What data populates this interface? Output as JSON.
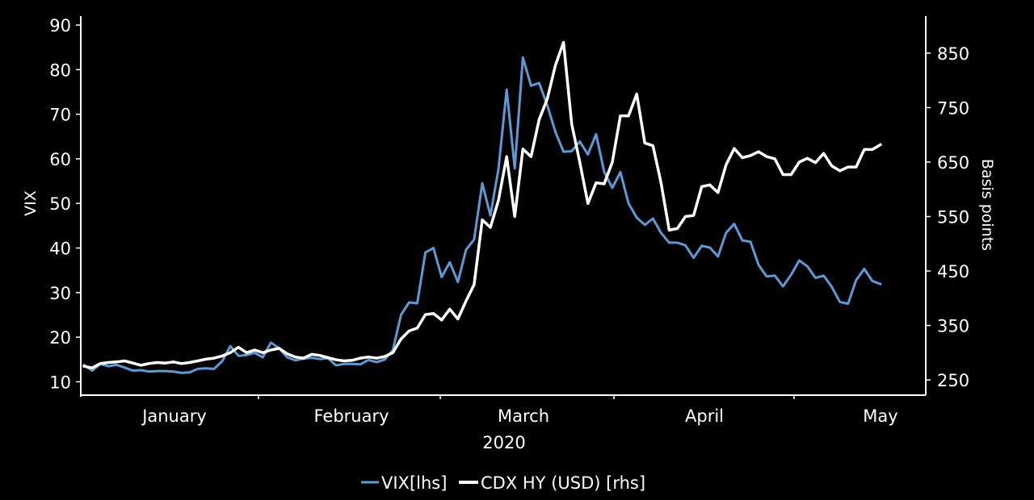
{
  "chart_data": {
    "type": "line",
    "x_tick_labels": [
      "January",
      "February",
      "March",
      "April",
      "May"
    ],
    "xlabel": "2020",
    "ylabel_left": "VIX",
    "ylabel_right": "Basis points",
    "ylim_left": [
      7,
      92
    ],
    "ylim_right": [
      222,
      918
    ],
    "yticks_left": [
      10,
      20,
      30,
      40,
      50,
      60,
      70,
      80,
      90
    ],
    "yticks_right": [
      250,
      350,
      450,
      550,
      650,
      750,
      850
    ],
    "grid": false,
    "legend_position": "bottom-center",
    "series": [
      {
        "name": "VIX[lhs]",
        "axis": "left",
        "color": "#5b9bd5",
        "values": [
          13.8,
          12.5,
          14.0,
          13.5,
          13.8,
          13.2,
          12.5,
          12.6,
          12.3,
          12.4,
          12.4,
          12.3,
          12.0,
          12.1,
          12.9,
          13.0,
          12.9,
          14.6,
          18.0,
          15.8,
          16.0,
          16.5,
          15.5,
          18.8,
          17.5,
          15.5,
          14.8,
          15.2,
          15.4,
          15.1,
          15.3,
          13.7,
          14.0,
          14.0,
          13.9,
          14.9,
          14.4,
          15.0,
          17.1,
          25.0,
          27.8,
          27.6,
          39.0,
          40.0,
          33.5,
          36.8,
          32.4,
          39.6,
          41.9,
          54.5,
          47.3,
          57.8,
          75.5,
          57.9,
          82.7,
          76.4,
          77.0,
          72.0,
          66.0,
          61.6,
          61.7,
          63.9,
          61.0,
          65.5,
          57.1,
          53.5,
          57.0,
          50.0,
          46.8,
          45.2,
          46.6,
          43.4,
          41.2,
          41.2,
          40.6,
          37.8,
          40.5,
          40.1,
          38.1,
          43.4,
          45.4,
          41.7,
          41.4,
          36.2,
          33.6,
          33.8,
          31.4,
          34.0,
          37.2,
          35.9,
          33.3,
          33.8,
          31.3,
          27.9,
          27.5,
          32.8,
          35.3,
          32.6,
          31.9
        ]
      },
      {
        "name": "CDX HY (USD) [rhs]",
        "axis": "right",
        "color": "#ffffff",
        "values": [
          275,
          272,
          280,
          282,
          283,
          285,
          281,
          277,
          280,
          282,
          281,
          283,
          280,
          282,
          285,
          288,
          290,
          294,
          300,
          310,
          300,
          305,
          300,
          305,
          308,
          298,
          292,
          290,
          297,
          295,
          291,
          287,
          285,
          286,
          290,
          292,
          290,
          293,
          300,
          325,
          340,
          345,
          370,
          372,
          360,
          380,
          362,
          395,
          425,
          544,
          530,
          580,
          660,
          550,
          674,
          660,
          728,
          766,
          828,
          870,
          720,
          650,
          574,
          612,
          610,
          650,
          735,
          735,
          775,
          685,
          680,
          612,
          525,
          528,
          550,
          552,
          605,
          608,
          594,
          645,
          675,
          658,
          662,
          669,
          660,
          656,
          627,
          627,
          650,
          657,
          649,
          666,
          643,
          634,
          641,
          641,
          673,
          673,
          682
        ]
      }
    ]
  }
}
